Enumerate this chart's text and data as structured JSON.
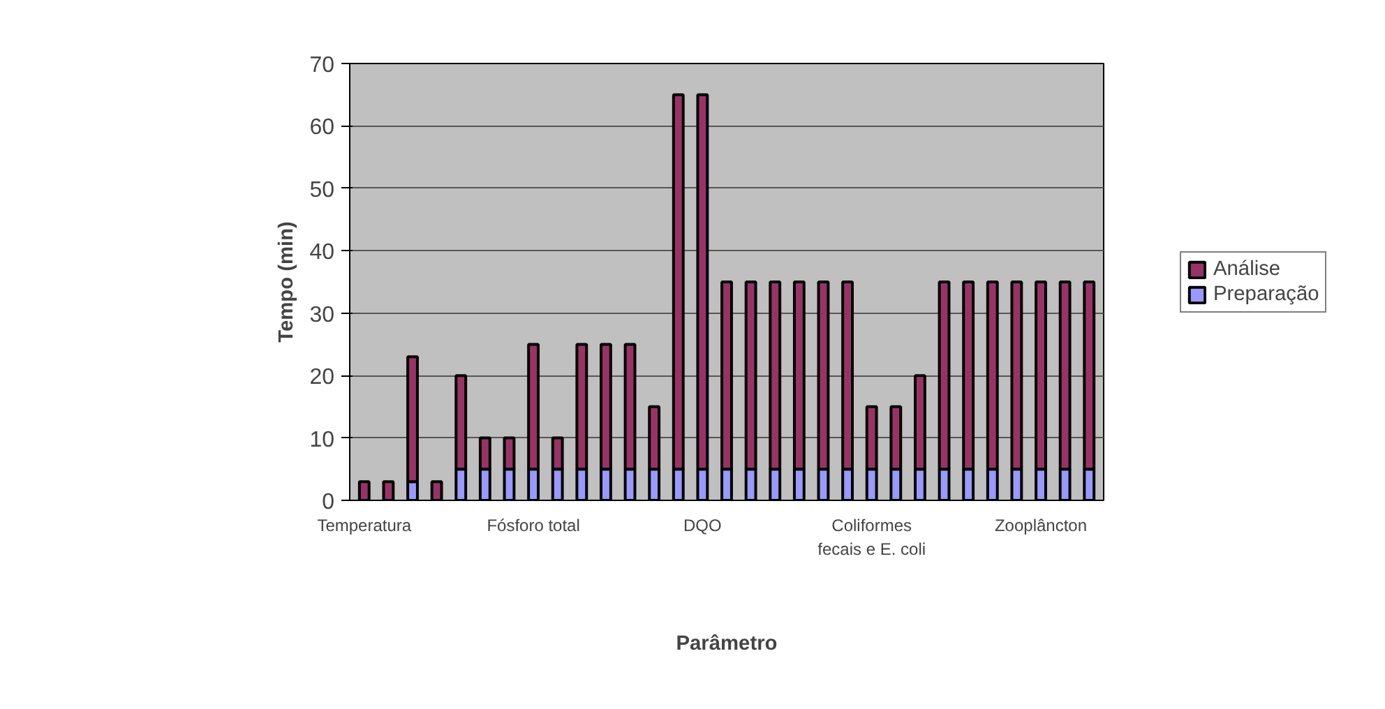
{
  "chart_data": {
    "type": "bar",
    "stacked": true,
    "xlabel": "Parâmetro",
    "ylabel": "Tempo (min)",
    "categories": [
      "Temperatura",
      null,
      null,
      null,
      null,
      null,
      null,
      "Fósforo total",
      null,
      null,
      null,
      null,
      null,
      null,
      "DQO",
      null,
      null,
      null,
      null,
      null,
      null,
      "Coliformes fecais e E. coli",
      null,
      null,
      null,
      null,
      null,
      null,
      "Zooplâncton",
      null,
      null
    ],
    "series": [
      {
        "name": "Preparação",
        "color": "#9999ff",
        "values": [
          0,
          0,
          3,
          0,
          5,
          5,
          5,
          5,
          5,
          5,
          5,
          5,
          5,
          5,
          5,
          5,
          5,
          5,
          5,
          5,
          5,
          5,
          5,
          5,
          5,
          5,
          5,
          5,
          5,
          5,
          5
        ]
      },
      {
        "name": "Análise",
        "color": "#993366",
        "values": [
          3,
          3,
          20,
          3,
          15,
          5,
          5,
          20,
          5,
          20,
          20,
          20,
          10,
          60,
          60,
          30,
          30,
          30,
          30,
          30,
          30,
          10,
          10,
          15,
          30,
          30,
          30,
          30,
          30,
          30,
          30
        ]
      }
    ],
    "ylim": [
      0,
      70
    ],
    "yticks": [
      0,
      10,
      20,
      30,
      40,
      50,
      60,
      70
    ],
    "grid": "y",
    "legend": "right"
  }
}
